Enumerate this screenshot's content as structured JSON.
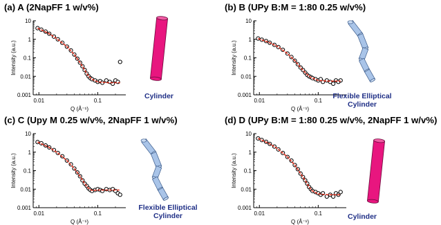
{
  "panels": [
    {
      "title": "(a) A (2NapFF 1 w/v%)",
      "model_label_line1": "Cylinder",
      "model_label_line2": "",
      "model_shape": "cylinder",
      "model_color": "#e8167f"
    },
    {
      "title": "(b) B (UPy B:M = 1:80 0.25 w/v%)",
      "model_label_line1": "Flexible Elliptical",
      "model_label_line2": "Cylinder",
      "model_shape": "flexible-elliptical-cylinder",
      "model_color": "#a9c4e8"
    },
    {
      "title": "(c) C (Upy M 0.25 w/v%, 2NapFF 1 w/v%)",
      "model_label_line1": "Flexible Elliptical",
      "model_label_line2": "Cylinder",
      "model_shape": "flexible-elliptical-cylinder",
      "model_color": "#a9c4e8"
    },
    {
      "title": "(d) D (UPy B:M = 1:80 0.25 w/v%, 2NapFF 1 w/v%)",
      "model_label_line1": "Cylinder",
      "model_label_line2": "",
      "model_shape": "cylinder",
      "model_color": "#e8167f"
    }
  ],
  "chart_data": [
    {
      "type": "scatter",
      "title": "(a) A (2NapFF 1 w/v%)",
      "xlabel": "Q (Å⁻¹)",
      "ylabel": "Intensity (a.u.)",
      "xscale": "log",
      "yscale": "log",
      "xlim": [
        0.008,
        0.3
      ],
      "ylim": [
        0.001,
        10
      ],
      "xticks": [
        "0.01",
        "0.1"
      ],
      "yticks": [
        "0.001",
        "0.01",
        "0.1",
        "1",
        "10"
      ],
      "series": [
        {
          "marker": "open-circle",
          "color": "#000000",
          "x": [
            0.0095,
            0.011,
            0.013,
            0.015,
            0.018,
            0.021,
            0.025,
            0.03,
            0.035,
            0.04,
            0.045,
            0.05,
            0.055,
            0.06,
            0.065,
            0.07,
            0.075,
            0.08,
            0.09,
            0.1,
            0.11,
            0.12,
            0.14,
            0.16,
            0.18,
            0.2,
            0.22,
            0.24
          ],
          "y": [
            4.0,
            3.3,
            2.6,
            2.0,
            1.4,
            1.0,
            0.65,
            0.4,
            0.25,
            0.15,
            0.09,
            0.055,
            0.035,
            0.022,
            0.014,
            0.01,
            0.008,
            0.007,
            0.006,
            0.005,
            0.0055,
            0.0045,
            0.006,
            0.005,
            0.004,
            0.006,
            0.005,
            0.06
          ]
        },
        {
          "marker": "line",
          "color": "#e0301e",
          "x": [
            0.0095,
            0.015,
            0.02,
            0.03,
            0.04,
            0.05,
            0.06,
            0.07,
            0.08,
            0.1,
            0.15,
            0.24
          ],
          "y": [
            4.0,
            2.0,
            1.1,
            0.4,
            0.15,
            0.055,
            0.022,
            0.01,
            0.007,
            0.005,
            0.0045,
            0.0045
          ]
        }
      ]
    },
    {
      "type": "scatter",
      "title": "(b) B (UPy B:M = 1:80 0.25 w/v%)",
      "xlabel": "Q (Å⁻¹)",
      "ylabel": "Intensity (a.u.)",
      "xscale": "log",
      "yscale": "log",
      "xlim": [
        0.008,
        0.3
      ],
      "ylim": [
        0.001,
        10
      ],
      "xticks": [
        "0.01",
        "0.1"
      ],
      "yticks": [
        "0.001",
        "0.01",
        "0.1",
        "1",
        "10"
      ],
      "series": [
        {
          "marker": "open-circle",
          "color": "#000000",
          "x": [
            0.0095,
            0.011,
            0.013,
            0.015,
            0.018,
            0.021,
            0.025,
            0.03,
            0.035,
            0.04,
            0.045,
            0.05,
            0.055,
            0.06,
            0.065,
            0.07,
            0.075,
            0.08,
            0.09,
            0.1,
            0.11,
            0.12,
            0.14,
            0.16,
            0.18,
            0.2,
            0.22,
            0.24
          ],
          "y": [
            1.1,
            0.95,
            0.8,
            0.65,
            0.5,
            0.38,
            0.27,
            0.17,
            0.11,
            0.07,
            0.045,
            0.03,
            0.022,
            0.016,
            0.012,
            0.01,
            0.009,
            0.008,
            0.007,
            0.006,
            0.007,
            0.005,
            0.006,
            0.005,
            0.004,
            0.006,
            0.005,
            0.006
          ]
        },
        {
          "marker": "line",
          "color": "#e0301e",
          "x": [
            0.0095,
            0.015,
            0.02,
            0.03,
            0.04,
            0.05,
            0.06,
            0.07,
            0.08,
            0.1,
            0.15,
            0.24
          ],
          "y": [
            1.1,
            0.65,
            0.42,
            0.17,
            0.07,
            0.03,
            0.016,
            0.01,
            0.008,
            0.006,
            0.0055,
            0.0055
          ]
        }
      ]
    },
    {
      "type": "scatter",
      "title": "(c) C (Upy M 0.25 w/v%, 2NapFF 1 w/v%)",
      "xlabel": "Q (Å⁻¹)",
      "ylabel": "Intensity (a.u.)",
      "xscale": "log",
      "yscale": "log",
      "xlim": [
        0.008,
        0.3
      ],
      "ylim": [
        0.001,
        10
      ],
      "xticks": [
        "0.01",
        "0.1"
      ],
      "yticks": [
        "0.001",
        "0.01",
        "0.1",
        "1",
        "10"
      ],
      "series": [
        {
          "marker": "open-circle",
          "color": "#000000",
          "x": [
            0.0095,
            0.011,
            0.013,
            0.015,
            0.018,
            0.021,
            0.025,
            0.03,
            0.035,
            0.04,
            0.045,
            0.05,
            0.055,
            0.06,
            0.065,
            0.07,
            0.075,
            0.08,
            0.09,
            0.1,
            0.11,
            0.12,
            0.14,
            0.16,
            0.18,
            0.2,
            0.22,
            0.24
          ],
          "y": [
            3.5,
            3.0,
            2.3,
            1.8,
            1.3,
            0.9,
            0.6,
            0.35,
            0.22,
            0.13,
            0.08,
            0.05,
            0.03,
            0.02,
            0.015,
            0.011,
            0.009,
            0.008,
            0.009,
            0.01,
            0.009,
            0.008,
            0.01,
            0.009,
            0.01,
            0.008,
            0.006,
            0.005
          ]
        },
        {
          "marker": "line",
          "color": "#e0301e",
          "x": [
            0.0095,
            0.015,
            0.02,
            0.03,
            0.04,
            0.05,
            0.06,
            0.07,
            0.08,
            0.1,
            0.15,
            0.24
          ],
          "y": [
            3.5,
            1.8,
            1.0,
            0.35,
            0.13,
            0.05,
            0.02,
            0.011,
            0.0085,
            0.009,
            0.009,
            0.009
          ]
        }
      ]
    },
    {
      "type": "scatter",
      "title": "(d) D (UPy B:M = 1:80 0.25 w/v%, 2NapFF 1 w/v%)",
      "xlabel": "Q (Å⁻¹)",
      "ylabel": "Intensity (a.u.)",
      "xscale": "log",
      "yscale": "log",
      "xlim": [
        0.008,
        0.3
      ],
      "ylim": [
        0.001,
        10
      ],
      "xticks": [
        "0.01",
        "0.1"
      ],
      "yticks": [
        "0.001",
        "0.01",
        "0.1",
        "1",
        "10"
      ],
      "series": [
        {
          "marker": "open-circle",
          "color": "#000000",
          "x": [
            0.0095,
            0.011,
            0.013,
            0.015,
            0.018,
            0.021,
            0.025,
            0.03,
            0.035,
            0.04,
            0.045,
            0.05,
            0.055,
            0.06,
            0.065,
            0.07,
            0.075,
            0.08,
            0.09,
            0.1,
            0.11,
            0.12,
            0.14,
            0.16,
            0.18,
            0.2,
            0.22,
            0.24
          ],
          "y": [
            5.5,
            4.5,
            3.6,
            2.8,
            2.0,
            1.4,
            0.9,
            0.55,
            0.35,
            0.2,
            0.12,
            0.07,
            0.045,
            0.03,
            0.02,
            0.013,
            0.01,
            0.008,
            0.007,
            0.006,
            0.005,
            0.006,
            0.004,
            0.005,
            0.004,
            0.006,
            0.005,
            0.007
          ]
        },
        {
          "marker": "line",
          "color": "#e0301e",
          "x": [
            0.0095,
            0.015,
            0.02,
            0.03,
            0.04,
            0.05,
            0.06,
            0.07,
            0.08,
            0.1,
            0.15,
            0.24
          ],
          "y": [
            5.5,
            2.8,
            1.6,
            0.55,
            0.2,
            0.07,
            0.03,
            0.013,
            0.008,
            0.0055,
            0.005,
            0.005
          ]
        }
      ]
    }
  ]
}
